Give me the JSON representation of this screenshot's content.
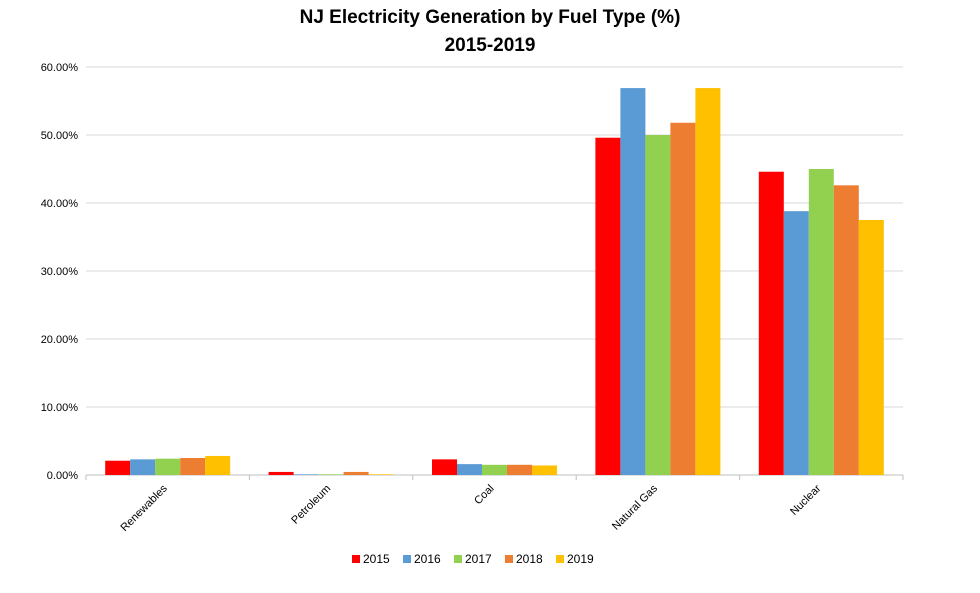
{
  "chart_data": {
    "type": "bar",
    "title": "NJ Electricity Generation by Fuel Type (%)",
    "subtitle": "2015-2019",
    "xlabel": "",
    "ylabel": "",
    "ylim": [
      0,
      60
    ],
    "yticks": [
      "0.00%",
      "10.00%",
      "20.00%",
      "30.00%",
      "40.00%",
      "50.00%",
      "60.00%"
    ],
    "grid": true,
    "legend": "bottom",
    "categories": [
      "Renewables",
      "Petroleum",
      "Coal",
      "Natural Gas",
      "Nuclear"
    ],
    "series": [
      {
        "name": "2015",
        "color": "#ff0000",
        "values": [
          2.1,
          0.45,
          2.3,
          49.6,
          44.6
        ]
      },
      {
        "name": "2016",
        "color": "#5b9bd5",
        "values": [
          2.3,
          0.1,
          1.6,
          56.9,
          38.8
        ]
      },
      {
        "name": "2017",
        "color": "#92d050",
        "values": [
          2.4,
          0.1,
          1.5,
          50.0,
          45.0
        ]
      },
      {
        "name": "2018",
        "color": "#ed7d31",
        "values": [
          2.5,
          0.45,
          1.5,
          51.8,
          42.6
        ]
      },
      {
        "name": "2019",
        "color": "#ffc000",
        "values": [
          2.8,
          0.1,
          1.4,
          56.9,
          37.5
        ]
      }
    ]
  }
}
